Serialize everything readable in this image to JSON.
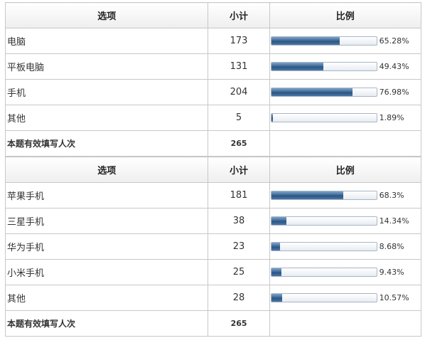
{
  "table1": {
    "headers": {
      "option": "选项",
      "count": "小计",
      "ratio": "比例"
    },
    "rows": [
      {
        "option": "电脑",
        "count": "173",
        "pct": "65.28%",
        "fraction": 0.6528
      },
      {
        "option": "平板电脑",
        "count": "131",
        "pct": "49.43%",
        "fraction": 0.4943
      },
      {
        "option": "手机",
        "count": "204",
        "pct": "76.98%",
        "fraction": 0.7698
      },
      {
        "option": "其他",
        "count": "5",
        "pct": "1.89%",
        "fraction": 0.0189
      }
    ],
    "total": {
      "label": "本题有效填写人次",
      "count": "265"
    }
  },
  "table2": {
    "headers": {
      "option": "选项",
      "count": "小计",
      "ratio": "比例"
    },
    "rows": [
      {
        "option": "苹果手机",
        "count": "181",
        "pct": "68.3%",
        "fraction": 0.683
      },
      {
        "option": "三星手机",
        "count": "38",
        "pct": "14.34%",
        "fraction": 0.1434
      },
      {
        "option": "华为手机",
        "count": "23",
        "pct": "8.68%",
        "fraction": 0.0868
      },
      {
        "option": "小米手机",
        "count": "25",
        "pct": "9.43%",
        "fraction": 0.0943
      },
      {
        "option": "其他",
        "count": "28",
        "pct": "10.57%",
        "fraction": 0.1057
      }
    ],
    "total": {
      "label": "本题有效填写人次",
      "count": "265"
    }
  },
  "colors": {
    "bar_fill": "#3e6a98",
    "border": "#c8c8c8",
    "header_bg": "#eeeeee"
  }
}
